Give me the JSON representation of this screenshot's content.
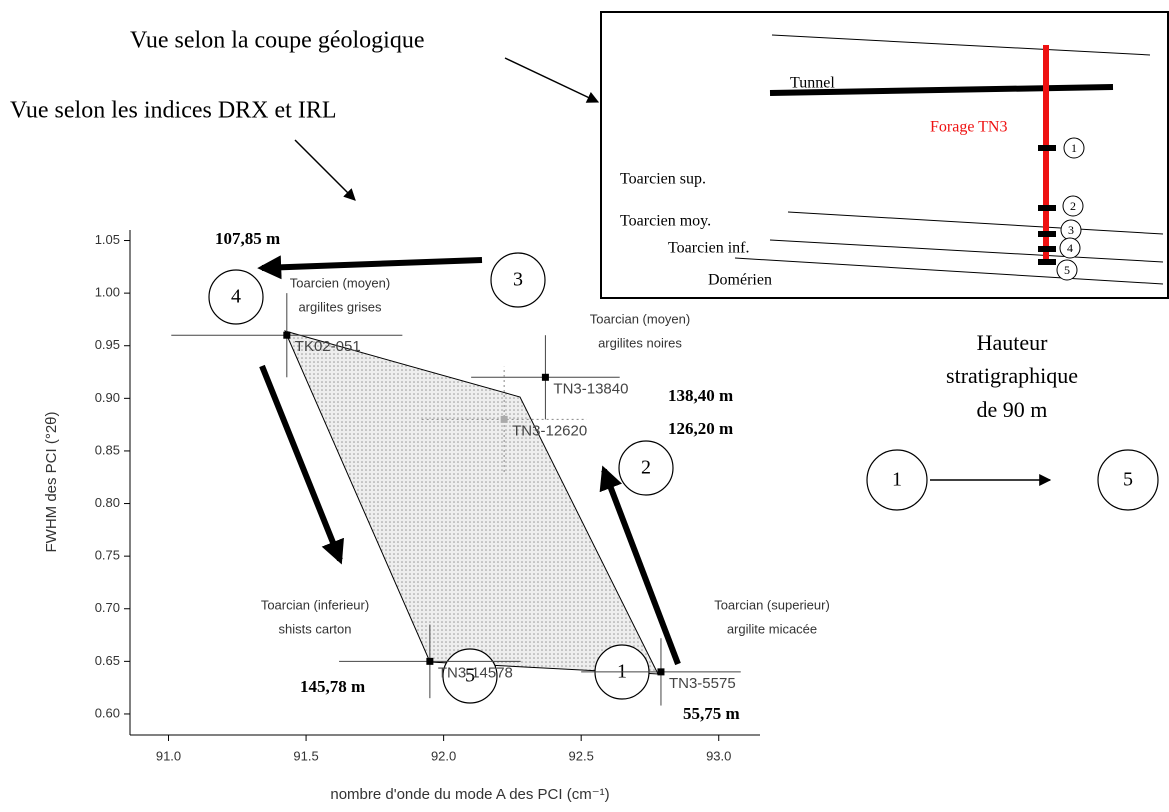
{
  "chart_data": {
    "type": "scatter",
    "xlabel": "nombre d'onde du mode A des PCI (cm⁻¹)",
    "ylabel": "FWHM des PCI (°2θ)",
    "xlim": [
      90.86,
      93.15
    ],
    "ylim": [
      0.58,
      1.06
    ],
    "xticks": [
      {
        "value": 91,
        "label": "91.0"
      },
      91.5,
      {
        "value": 92,
        "label": "92.0"
      },
      92.5,
      {
        "value": 93,
        "label": "93.0"
      }
    ],
    "yticks": [
      {
        "value": 0.6,
        "label": "0.60"
      },
      0.65,
      {
        "value": 0.7,
        "label": "0.70"
      },
      0.75,
      {
        "value": 0.8,
        "label": "0.80"
      },
      0.85,
      {
        "value": 0.9,
        "label": "0.90"
      },
      0.95,
      {
        "value": 1,
        "label": "1.00"
      },
      1.05
    ],
    "color": "#000000",
    "x": [
      91.43,
      92.37,
      92.22,
      91.95,
      92.79
    ],
    "values": [
      0.96,
      0.92,
      0.88,
      0.65,
      0.64
    ],
    "xerr": [
      0.42,
      0.27,
      0.3,
      0.33,
      0.29
    ],
    "yerr": [
      0.04,
      0.04,
      0.05,
      0.035,
      0.032
    ],
    "errbar_style": [
      "solid",
      "solid",
      "dotted",
      "solid",
      "solid"
    ],
    "point_labels": [
      "TK02-051",
      "TN3-13840",
      "TN3-12620",
      "TN3-14578",
      "TN3-5575"
    ]
  },
  "annotations": {
    "coupe": "Vue selon la coupe géologique",
    "indices": "Vue selon les indices DRX et IRL",
    "regions": [
      [
        "Toarcien (moyen)",
        "argilites grises"
      ],
      [
        "Toarcian (moyen)",
        "argilites noires"
      ],
      [
        "Toarcian (inferieur)",
        "shists carton"
      ],
      [
        "Toarcian (superieur)",
        "argilite micacée"
      ]
    ],
    "depths": [
      "107,85 m",
      "138,40 m",
      "126,20 m",
      "145,78 m",
      "55,75 m"
    ],
    "numbers": [
      "4",
      "3",
      "2",
      "5",
      "1",
      "1",
      "5"
    ],
    "hauteur": [
      "Hauteur",
      "stratigraphique",
      "de 90 m"
    ]
  },
  "diagram": {
    "tunnel": "Tunnel",
    "forage": "Forage TN3",
    "layers": [
      "Toarcien sup.",
      "Toarcien moy.",
      "Toarcien inf.",
      "Domérien"
    ],
    "numbers": [
      "1",
      "2",
      "3",
      "4",
      "5"
    ]
  }
}
